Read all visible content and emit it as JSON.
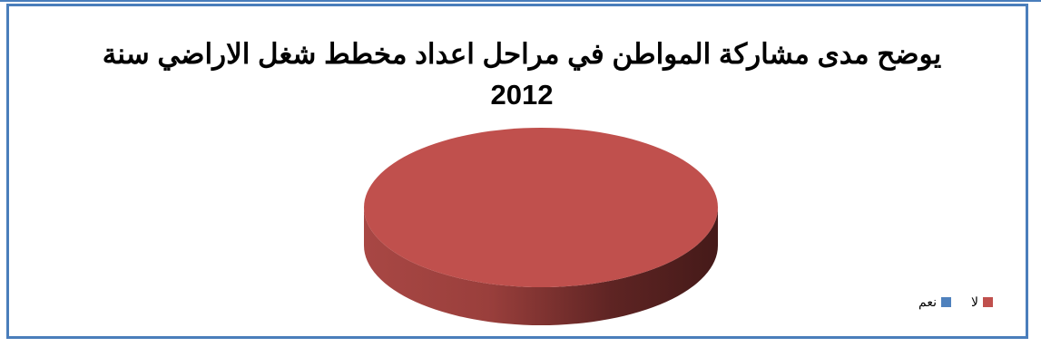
{
  "chart_data": {
    "type": "pie",
    "title_line1": "يوضح مدى مشاركة المواطن في مراحل اعداد مخطط شغل الاراضي سنة",
    "title_line2": "2012",
    "categories": [
      "لا",
      "نعم"
    ],
    "values": [
      100,
      0
    ],
    "colors": [
      "#c0504d",
      "#4f81bd"
    ],
    "legend_position": "right",
    "style": "3d"
  },
  "frame": {
    "border_color": "#4a7ebb"
  }
}
